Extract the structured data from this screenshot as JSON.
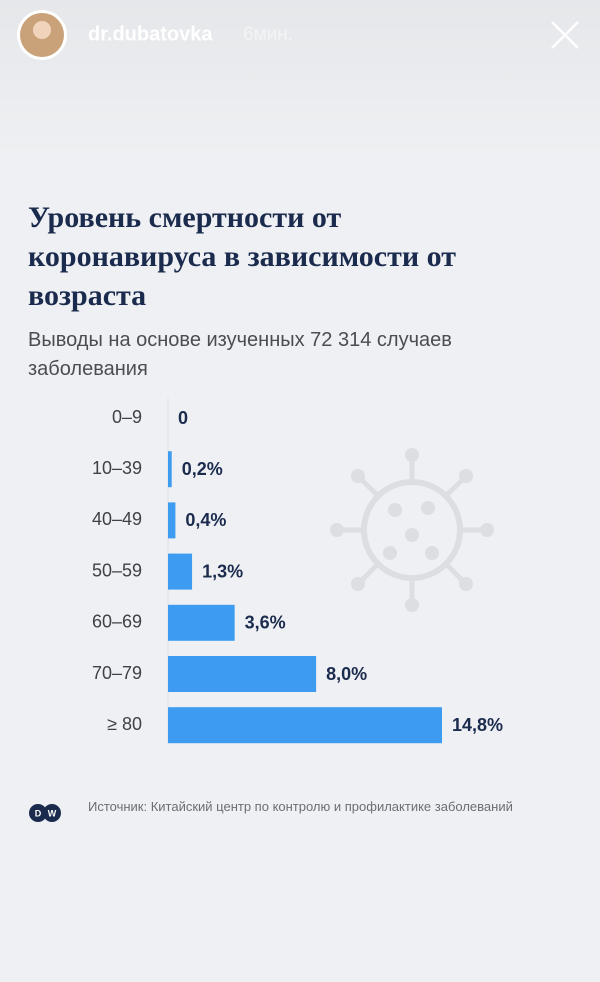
{
  "story": {
    "username": "dr.dubatovka",
    "time": "6мин."
  },
  "chart_data": {
    "type": "bar",
    "orientation": "horizontal",
    "title": "Уровень смертности от коронавируса в зависимости от возраста",
    "subtitle": "Выводы на основе изученных 72 314 случаев заболевания",
    "categories": [
      "0–9",
      "10–39",
      "40–49",
      "50–59",
      "60–69",
      "70–79",
      "≥ 80"
    ],
    "values": [
      0,
      0.2,
      0.4,
      1.3,
      3.6,
      8.0,
      14.8
    ],
    "value_labels": [
      "0",
      "0,2%",
      "0,4%",
      "1,3%",
      "3,6%",
      "8,0%",
      "14,8%"
    ],
    "color": "#3d9cf0",
    "source": "Источник: Китайский центр по контролю и профилактике заболеваний"
  }
}
